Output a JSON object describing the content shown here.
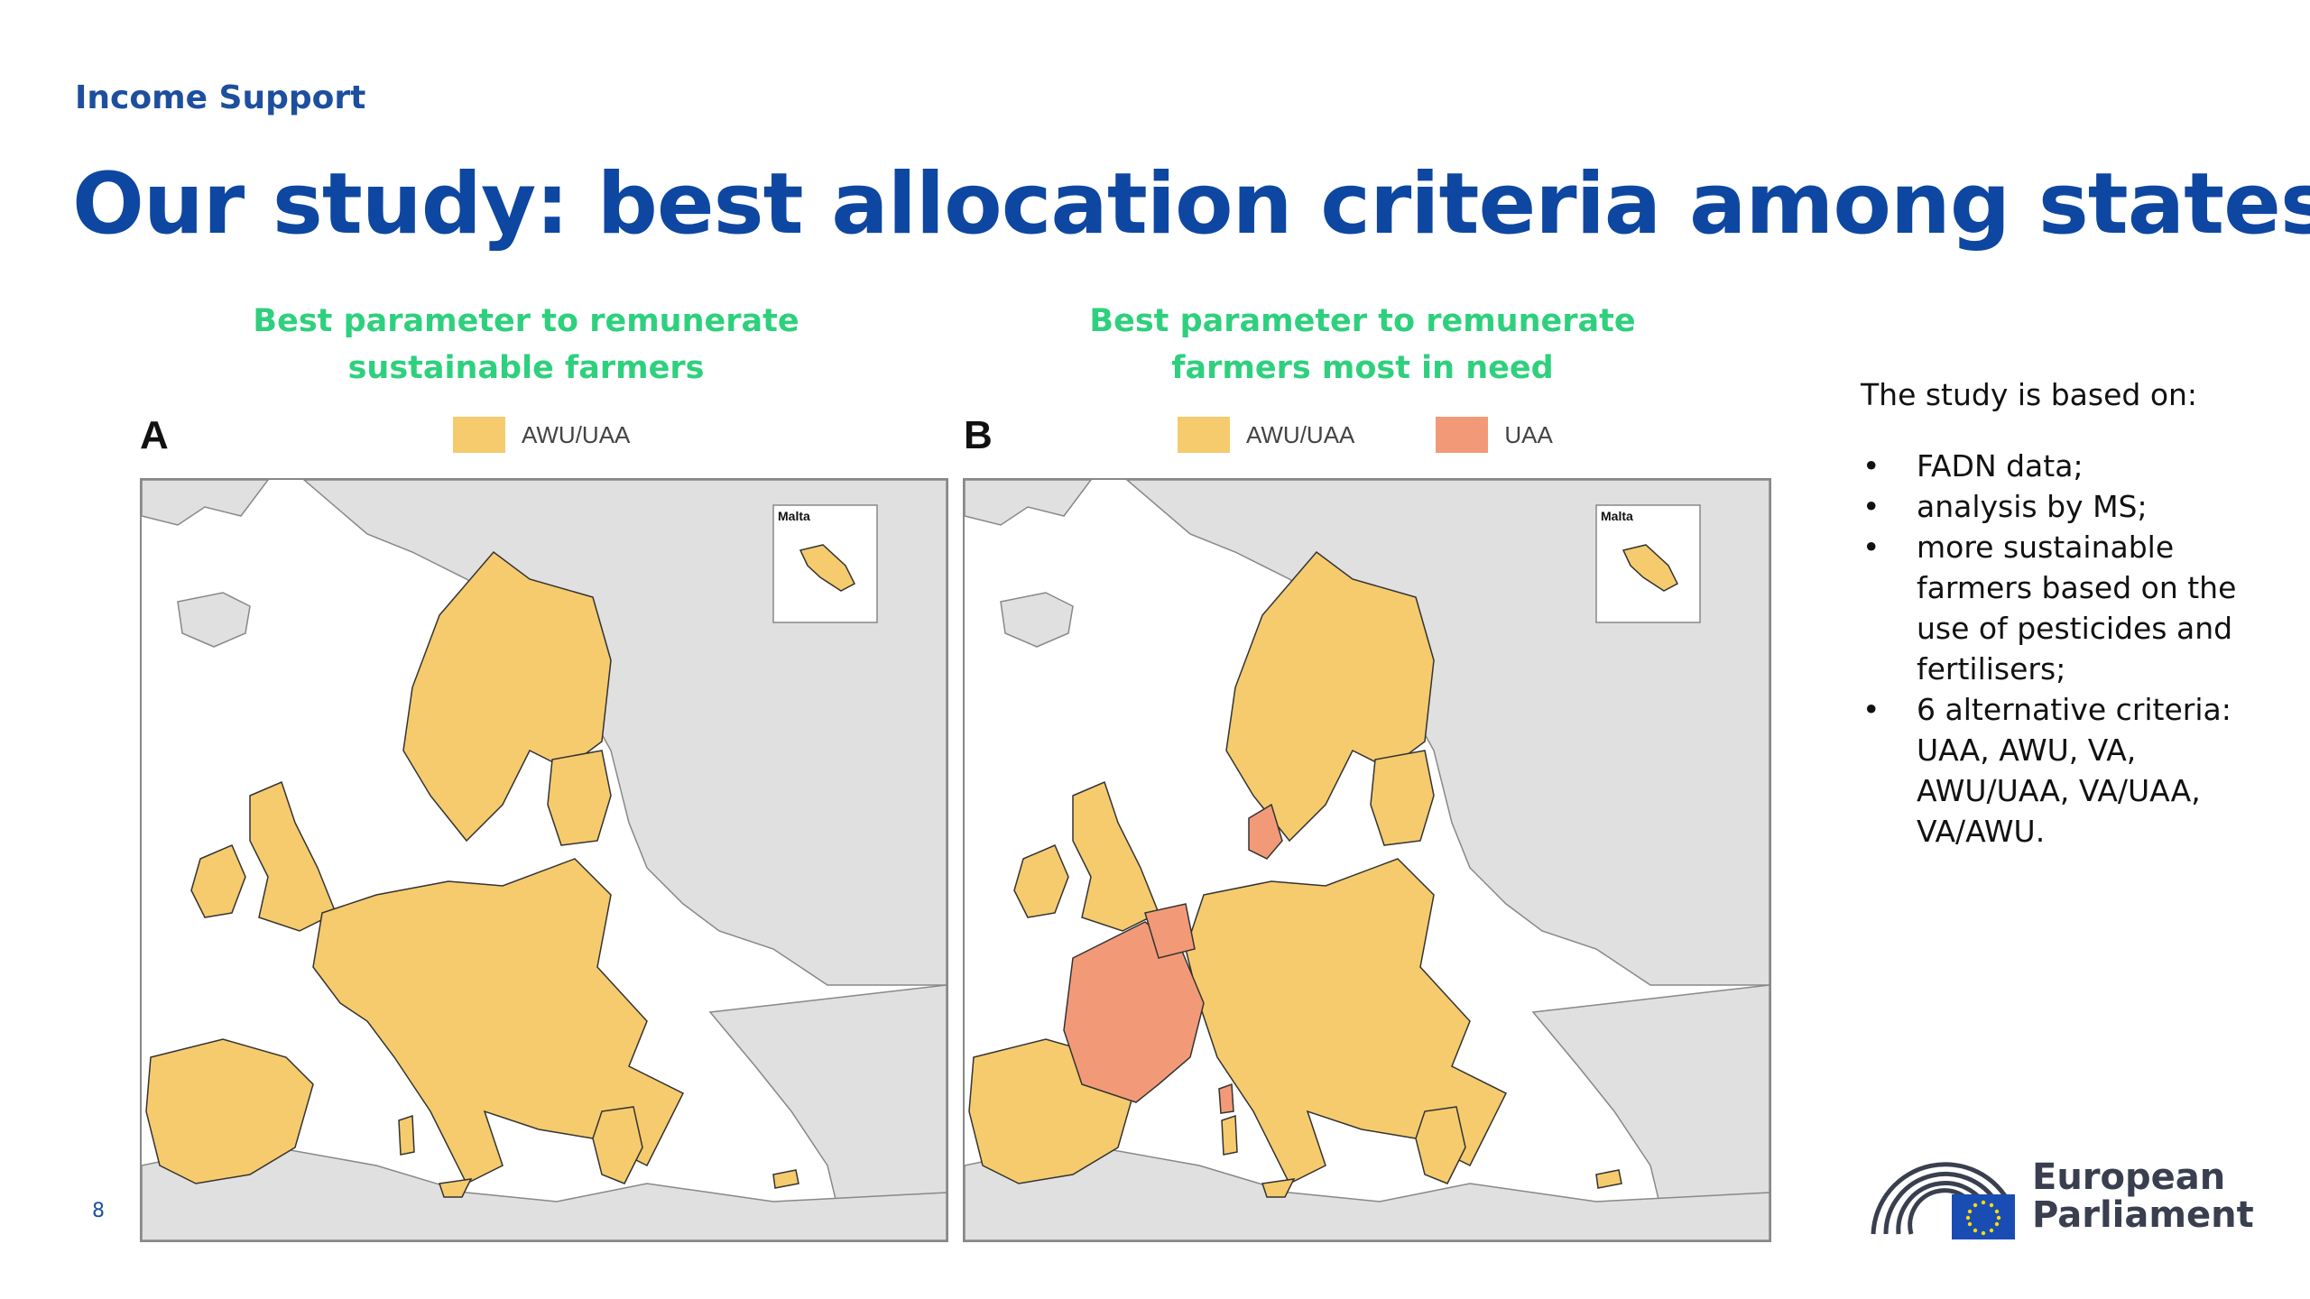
{
  "header": {
    "section": "Income Support",
    "title": "Our study: best allocation criteria among states"
  },
  "panels": [
    {
      "letter": "A",
      "heading_line1": "Best parameter to remunerate",
      "heading_line2": "sustainable farmers",
      "legend": [
        {
          "label": "AWU/UAA",
          "color": "#f5cb6e"
        }
      ],
      "inset_label": "Malta"
    },
    {
      "letter": "B",
      "heading_line1": "Best parameter to remunerate",
      "heading_line2": "farmers most in need",
      "legend": [
        {
          "label": "AWU/UAA",
          "color": "#f5cb6e"
        },
        {
          "label": "UAA",
          "color": "#f29a78"
        }
      ],
      "inset_label": "Malta"
    }
  ],
  "study": {
    "intro": "The study is based on:",
    "bullets": [
      "FADN data;",
      "analysis by MS;",
      "more sustainable farmers based on the use of pesticides and fertilisers;",
      "6 alternative criteria: UAA, AWU, VA, AWU/UAA, VA/UAA, VA/AWU."
    ]
  },
  "footer": {
    "page_number": "8",
    "logo_line1": "European",
    "logo_line2": "Parliament"
  },
  "colors": {
    "eu_fill": "#f5cb6e",
    "uaa_fill": "#f29a78",
    "non_eu": "#e0e0e0",
    "title": "#0e47a1",
    "heading": "#2fd07d"
  }
}
